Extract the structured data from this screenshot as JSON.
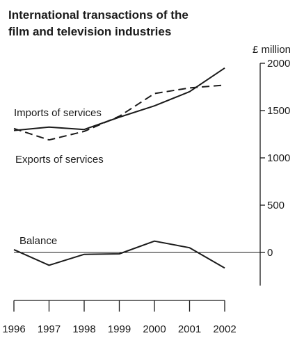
{
  "title_lines": [
    "International transactions of the",
    "film and television industries"
  ],
  "chart_data": {
    "type": "line",
    "title": "International transactions of the film and television industries",
    "ylabel": "£ million",
    "xlabel": "",
    "x": [
      "1996",
      "1997",
      "1998",
      "1999",
      "2000",
      "2001",
      "2002"
    ],
    "ylim": [
      -350,
      2000
    ],
    "yticks": [
      0,
      500,
      1000,
      1500,
      2000
    ],
    "yticklabels": [
      "0",
      "500",
      "1000",
      "1500",
      "2000"
    ],
    "grid": false,
    "series": [
      {
        "name": "Exports of services",
        "style": "solid",
        "values": [
          1290,
          1325,
          1300,
          1430,
          1550,
          1700,
          1950
        ]
      },
      {
        "name": "Imports of services",
        "style": "dashed",
        "values": [
          1310,
          1190,
          1280,
          1440,
          1680,
          1740,
          1770
        ]
      },
      {
        "name": "Balance",
        "style": "solid",
        "values": [
          30,
          -135,
          -20,
          -15,
          120,
          50,
          -165
        ]
      }
    ],
    "colors": {
      "line": "#1a1a1a",
      "axis": "#1a1a1a"
    }
  }
}
